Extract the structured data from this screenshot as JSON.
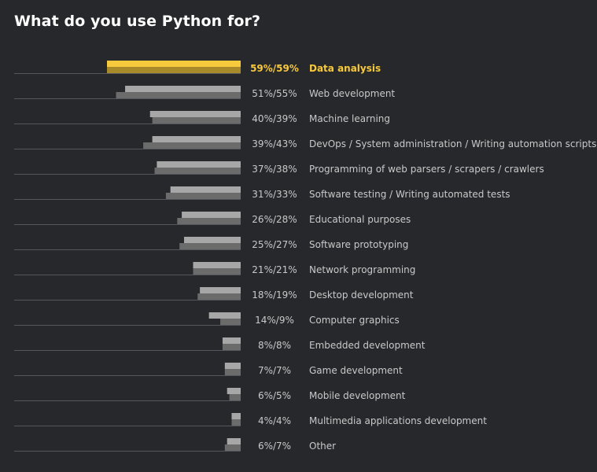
{
  "chart_data": {
    "type": "bar",
    "title": "What do you use Python for?",
    "orientation": "horizontal",
    "xlim": [
      0,
      59
    ],
    "highlight_category": "Data analysis",
    "colors": {
      "background": "#27282c",
      "bar_a": "#a7a7a7",
      "bar_b": "#6b6b6b",
      "highlight_a": "#f7c93c",
      "highlight_b": "#a88a2b",
      "text": "#c9c9c9",
      "highlight_text": "#f7c93c",
      "baseline": "#55575c"
    },
    "categories": [
      "Data analysis",
      "Web development",
      "Machine learning",
      "DevOps / System administration / Writing automation scripts",
      "Programming of web parsers / scrapers / crawlers",
      "Software testing / Writing automated tests",
      "Educational purposes",
      "Software prototyping",
      "Network programming",
      "Desktop development",
      "Computer graphics",
      "Embedded development",
      "Game development",
      "Mobile development",
      "Multimedia applications development",
      "Other"
    ],
    "value_labels": [
      "59%/59%",
      "51%/55%",
      "40%/39%",
      "39%/43%",
      "37%/38%",
      "31%/33%",
      "26%/28%",
      "25%/27%",
      "21%/21%",
      "18%/19%",
      "14%/9%",
      "8%/8%",
      "7%/7%",
      "6%/5%",
      "4%/4%",
      "6%/7%"
    ],
    "series": [
      {
        "values": [
          59,
          51,
          40,
          39,
          37,
          31,
          26,
          25,
          21,
          18,
          14,
          8,
          7,
          6,
          4,
          6
        ]
      },
      {
        "values": [
          59,
          55,
          39,
          43,
          38,
          33,
          28,
          27,
          21,
          19,
          9,
          8,
          7,
          5,
          4,
          7
        ]
      }
    ]
  }
}
